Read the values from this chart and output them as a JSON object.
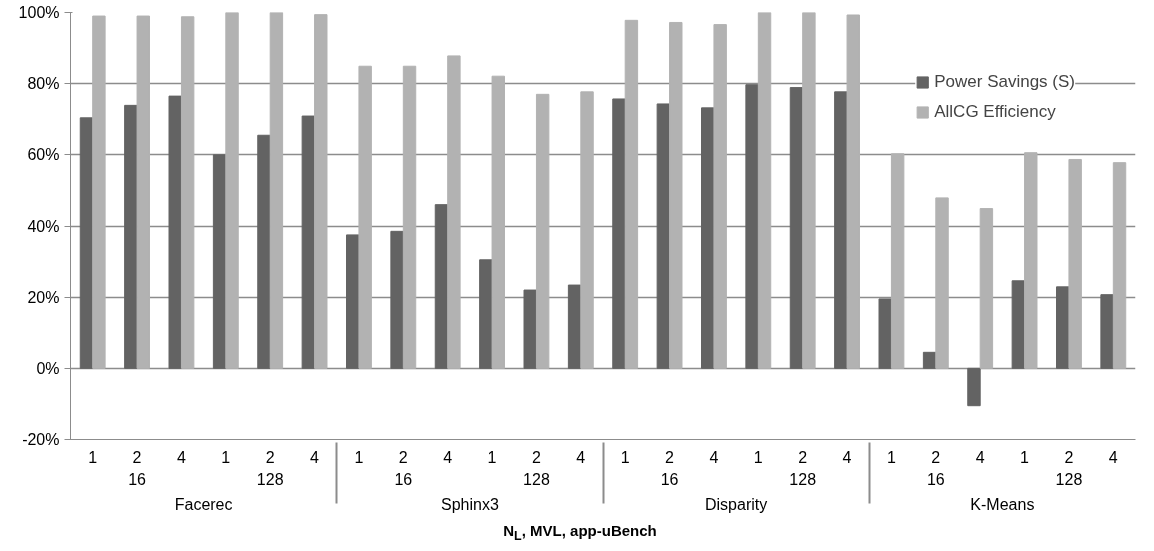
{
  "chart_data": {
    "type": "bar",
    "categories": [
      "1",
      "2",
      "4",
      "1",
      "2",
      "4",
      "1",
      "2",
      "4",
      "1",
      "2",
      "4",
      "1",
      "2",
      "4",
      "1",
      "2",
      "4",
      "1",
      "2",
      "4",
      "1",
      "2",
      "4"
    ],
    "series": [
      {
        "name": "Power Savings (S)",
        "color": "#636363",
        "values": [
          70.4,
          73.9,
          76.5,
          60.0,
          65.5,
          70.9,
          37.5,
          38.5,
          46.0,
          30.5,
          22.0,
          23.4,
          75.7,
          74.3,
          73.2,
          79.7,
          78.9,
          77.7,
          19.5,
          4.5,
          -10.5,
          24.6,
          22.9,
          20.7
        ]
      },
      {
        "name": "AllCG Efficiency",
        "color": "#b2b2b2",
        "values": [
          99.0,
          99.0,
          98.8,
          100,
          100,
          99.4,
          84.9,
          84.9,
          87.8,
          82.1,
          77.0,
          77.7,
          97.8,
          97.2,
          96.6,
          100,
          100,
          99.3,
          60.3,
          47.9,
          44.9,
          60.6,
          58.7,
          57.8
        ]
      }
    ],
    "xlabel": "N$_{L}$, MVL, app-uBench",
    "annotations": [
      "Facerec",
      "Sphinx3",
      "Disparity",
      "K-Means",
      "16",
      "128",
      "16",
      "128",
      "16",
      "128",
      "16",
      "128"
    ],
    "ylim": [
      -20,
      100
    ],
    "yticks": [
      {
        "value": -20,
        "label": "-20%"
      },
      {
        "value": 0,
        "label": "0%"
      },
      {
        "value": 20,
        "label": "20%"
      },
      {
        "value": 40,
        "label": "40%"
      },
      {
        "value": 60,
        "label": "60%"
      },
      {
        "value": 80,
        "label": "80%"
      },
      {
        "value": 100,
        "label": "100%"
      }
    ],
    "grid": "y",
    "legend": "top right"
  }
}
